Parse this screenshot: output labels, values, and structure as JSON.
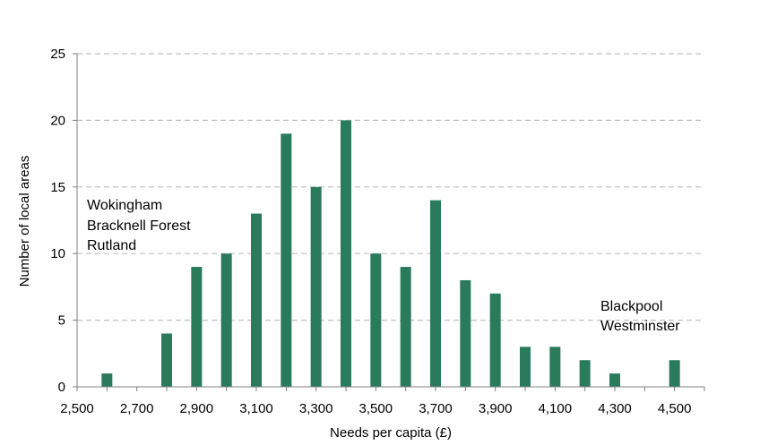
{
  "chart_data": {
    "type": "bar",
    "xlabel": "Needs per capita (£)",
    "ylabel": "Number of local areas",
    "ylim": [
      0,
      25
    ],
    "yticks": [
      "0",
      "5",
      "10",
      "15",
      "20",
      "25"
    ],
    "xlim": [
      2500,
      4600
    ],
    "xtick_labels": [
      "2,500",
      "2,700",
      "2,900",
      "3,100",
      "3,300",
      "3,500",
      "3,700",
      "3,900",
      "4,100",
      "4,300",
      "4,500"
    ],
    "grid": "horizontal dashed",
    "bar_color": "#2a7a5c",
    "bars": [
      {
        "x": 2600,
        "value": 1
      },
      {
        "x": 2700,
        "value": 0
      },
      {
        "x": 2800,
        "value": 4
      },
      {
        "x": 2900,
        "value": 9
      },
      {
        "x": 3000,
        "value": 10
      },
      {
        "x": 3100,
        "value": 13
      },
      {
        "x": 3200,
        "value": 19
      },
      {
        "x": 3300,
        "value": 15
      },
      {
        "x": 3400,
        "value": 20
      },
      {
        "x": 3500,
        "value": 10
      },
      {
        "x": 3600,
        "value": 9
      },
      {
        "x": 3700,
        "value": 14
      },
      {
        "x": 3800,
        "value": 8
      },
      {
        "x": 3900,
        "value": 7
      },
      {
        "x": 4000,
        "value": 3
      },
      {
        "x": 4100,
        "value": 3
      },
      {
        "x": 4200,
        "value": 2
      },
      {
        "x": 4300,
        "value": 1
      },
      {
        "x": 4400,
        "value": 0
      },
      {
        "x": 4500,
        "value": 2
      }
    ],
    "annotations": {
      "left": [
        "Wokingham",
        "Bracknell Forest",
        "Rutland"
      ],
      "right": [
        "Blackpool",
        "Westminster"
      ]
    }
  }
}
